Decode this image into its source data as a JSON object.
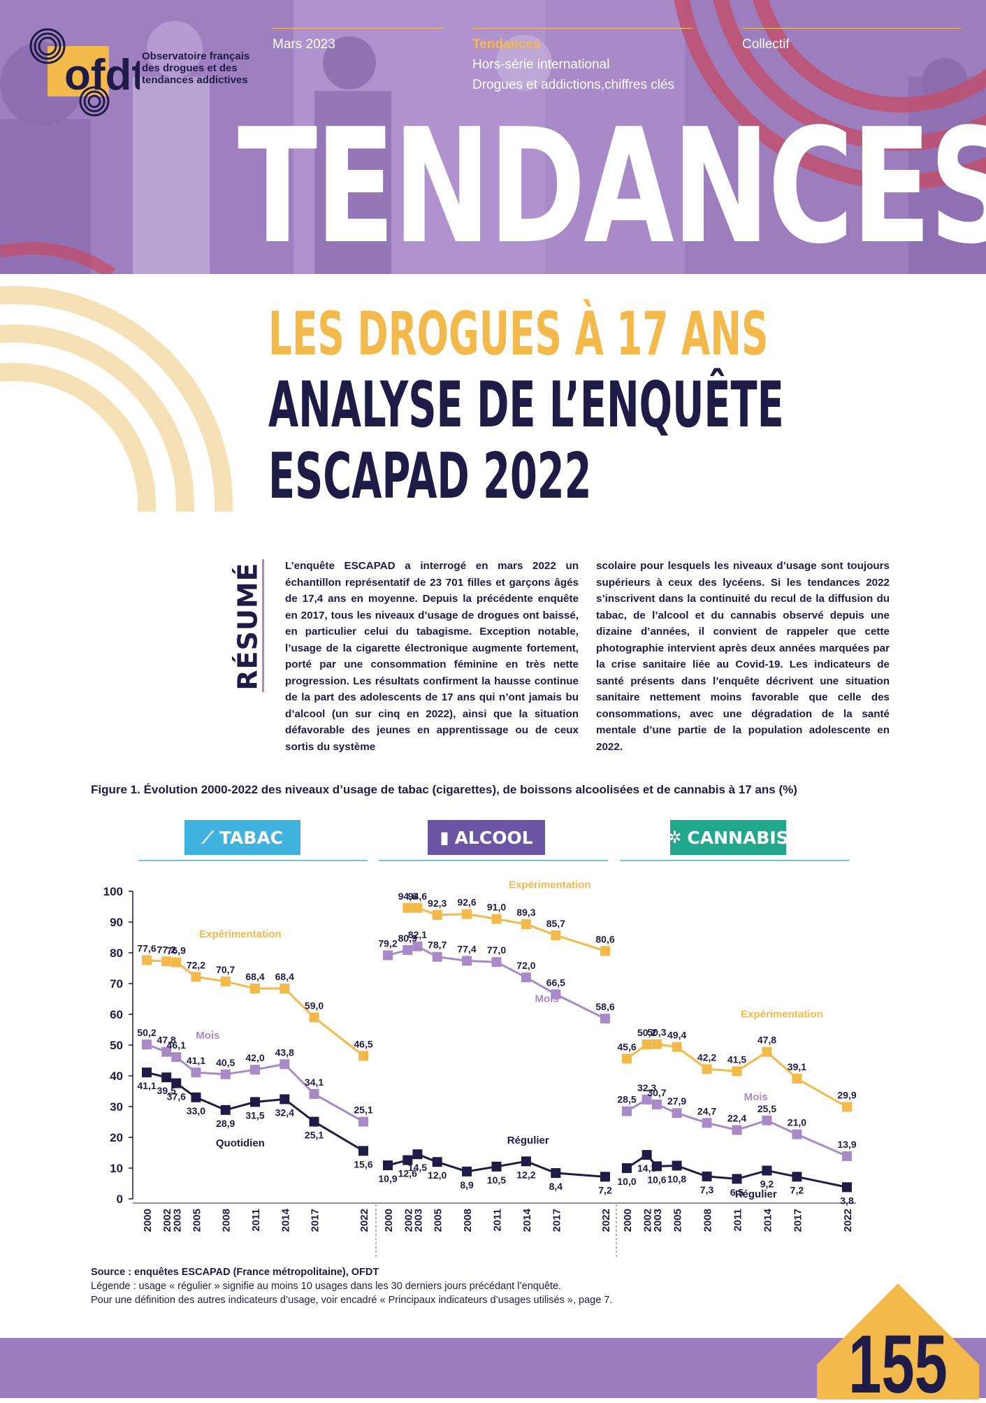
{
  "header": {
    "org_name": "Observatoire français\ndes drogues et des\ntendances addictives",
    "logo_letters": "ofdt",
    "date": "Mars 2023",
    "series_label": "Tendances",
    "series_line2": "Hors-série international",
    "series_line3": "Drogues et addictions,chiffres clés",
    "author": "Collectif",
    "masthead": "TENDANCES"
  },
  "title": {
    "line1": "LES DROGUES À 17 ANS",
    "line2": "ANALYSE DE L’ENQUÊTE",
    "line3": "ESCAPAD 2022"
  },
  "abstract": {
    "label": "RÉSUMÉ",
    "col1": "L’enquête ESCAPAD a interrogé en mars 2022 un échantillon représentatif de 23 701 filles et garçons âgés de 17,4 ans en moyenne. Depuis la précédente enquête en 2017, tous les niveaux d’usage de drogues ont baissé, en particulier celui du tabagisme. Exception notable, l’usage de la cigarette électronique augmente fortement, porté par une consommation féminine en très nette progression. Les résultats confirment la hausse continue de la part des adolescents de 17 ans qui n’ont jamais bu d’alcool (un sur cinq en 2022), ainsi que la situation défavorable des jeunes en apprentissage ou de ceux sortis du système",
    "col2": "scolaire pour lesquels les niveaux d’usage sont toujours supérieurs à ceux des lycéens. Si les tendances 2022 s’inscrivent dans la continuité du recul de la diffusion du tabac, de l’alcool et du cannabis observé depuis une dizaine d’années, il convient de rappeler que cette photographie intervient après deux années marquées par la crise sanitaire liée au Covid-19. Les indicateurs de santé présents dans l’enquête décrivent une situation sanitaire nettement moins favorable que celle des consommations, avec une dégradation de la santé mentale d’une partie de la population adolescente en 2022."
  },
  "figure": {
    "title": "Figure 1. Évolution 2000-2022 des niveaux d’usage de tabac (cigarettes), de boissons alcoolisées et de cannabis à 17 ans (%)",
    "categories": [
      {
        "label": "TABAC",
        "icon": "cigarette-icon",
        "color": "#3fb3de"
      },
      {
        "label": "ALCOOL",
        "icon": "glass-icon",
        "color": "#6d55a5"
      },
      {
        "label": "CANNABIS",
        "icon": "cannabis-leaf-icon",
        "color": "#21a88c"
      }
    ],
    "source": "Source : enquêtes ESCAPAD (France métropolitaine), OFDT",
    "legend_note": "Légende : usage « régulier » signifie au moins 10 usages dans les 30 derniers jours précédant l’enquête.",
    "definition_note": "Pour une définition des autres indicateurs d’usage, voir encadré « Principaux indicateurs d’usages utilisés », page 7."
  },
  "chart_data": [
    {
      "type": "line",
      "title": "TABAC",
      "x": [
        2000,
        2002,
        2003,
        2005,
        2008,
        2011,
        2014,
        2017,
        2022
      ],
      "ylim": [
        0,
        100
      ],
      "yticks": [
        0,
        10,
        20,
        30,
        40,
        50,
        60,
        70,
        80,
        90,
        100
      ],
      "series": [
        {
          "name": "Expérimentation",
          "color": "#f3b94b",
          "values": [
            77.6,
            77.2,
            76.9,
            72.2,
            70.7,
            68.4,
            68.4,
            59.0,
            46.5
          ],
          "labels": [
            "77,6",
            "77,2",
            "76,9",
            "72,2",
            "70,7",
            "68,4",
            "68,4",
            "59,0",
            "46,5"
          ]
        },
        {
          "name": "Mois",
          "color": "#a98ac9",
          "values": [
            50.2,
            47.8,
            46.1,
            41.1,
            40.5,
            42.0,
            43.8,
            34.1,
            25.1
          ],
          "labels": [
            "50,2",
            "47,8",
            "46,1",
            "41,1",
            "40,5",
            "42,0",
            "43,8",
            "34,1",
            "25,1"
          ]
        },
        {
          "name": "Quotidien",
          "color": "#1f1b47",
          "values": [
            41.1,
            39.5,
            37.6,
            33.0,
            28.9,
            31.5,
            32.4,
            25.1,
            15.6
          ],
          "labels": [
            "41,1",
            "39,5",
            "37,6",
            "33,0",
            "28,9",
            "31,5",
            "32,4",
            "25,1",
            "15,6"
          ]
        }
      ]
    },
    {
      "type": "line",
      "title": "ALCOOL",
      "x": [
        2000,
        2002,
        2003,
        2005,
        2008,
        2011,
        2014,
        2017,
        2022
      ],
      "ylim": [
        0,
        100
      ],
      "series": [
        {
          "name": "Expérimentation",
          "color": "#f3b94b",
          "values": [
            null,
            94.6,
            94.6,
            92.3,
            92.6,
            91.0,
            89.3,
            85.7,
            80.6
          ],
          "labels": [
            null,
            "94,6",
            "94,6",
            "92,3",
            "92,6",
            "91,0",
            "89,3",
            "85,7",
            "80,6"
          ]
        },
        {
          "name": "Mois",
          "color": "#a98ac9",
          "values": [
            79.2,
            80.9,
            82.1,
            78.7,
            77.4,
            77.0,
            72.0,
            66.5,
            58.6
          ],
          "labels": [
            "79,2",
            "80,9",
            "82,1",
            "78,7",
            "77,4",
            "77,0",
            "72,0",
            "66,5",
            "58,6"
          ]
        },
        {
          "name": "Régulier",
          "color": "#1f1b47",
          "values": [
            10.9,
            12.6,
            14.5,
            12.0,
            8.9,
            10.5,
            12.2,
            8.4,
            7.2
          ],
          "labels": [
            "10,9",
            "12,6",
            "14,5",
            "12,0",
            "8,9",
            "10,5",
            "12,2",
            "8,4",
            "7,2"
          ]
        }
      ]
    },
    {
      "type": "line",
      "title": "CANNABIS",
      "x": [
        2000,
        2002,
        2003,
        2005,
        2008,
        2011,
        2014,
        2017,
        2022
      ],
      "ylim": [
        0,
        100
      ],
      "series": [
        {
          "name": "Expérimentation",
          "color": "#f3b94b",
          "values": [
            45.6,
            50.2,
            50.3,
            49.4,
            42.2,
            41.5,
            47.8,
            39.1,
            29.9
          ],
          "labels": [
            "45,6",
            "50,2",
            "50,3",
            "49,4",
            "42,2",
            "41,5",
            "47,8",
            "39,1",
            "29,9"
          ]
        },
        {
          "name": "Mois",
          "color": "#a98ac9",
          "values": [
            28.5,
            32.3,
            30.7,
            27.9,
            24.7,
            22.4,
            25.5,
            21.0,
            13.9
          ],
          "labels": [
            "28,5",
            "32,3",
            "30,7",
            "27,9",
            "24,7",
            "22,4",
            "25,5",
            "21,0",
            "13,9"
          ]
        },
        {
          "name": "Régulier",
          "color": "#1f1b47",
          "values": [
            10.0,
            14.3,
            10.6,
            10.8,
            7.3,
            6.5,
            9.2,
            7.2,
            3.8
          ],
          "labels": [
            "10,0",
            "14,3",
            "10,6",
            "10,8",
            "7,3",
            "6,5",
            "9,2",
            "7,2",
            "3,8"
          ]
        }
      ]
    }
  ],
  "page_number": "155",
  "colors": {
    "purple": "#a98ac9",
    "navy": "#1f1b47",
    "gold": "#f3b94b",
    "teal": "#6fc9cf"
  }
}
